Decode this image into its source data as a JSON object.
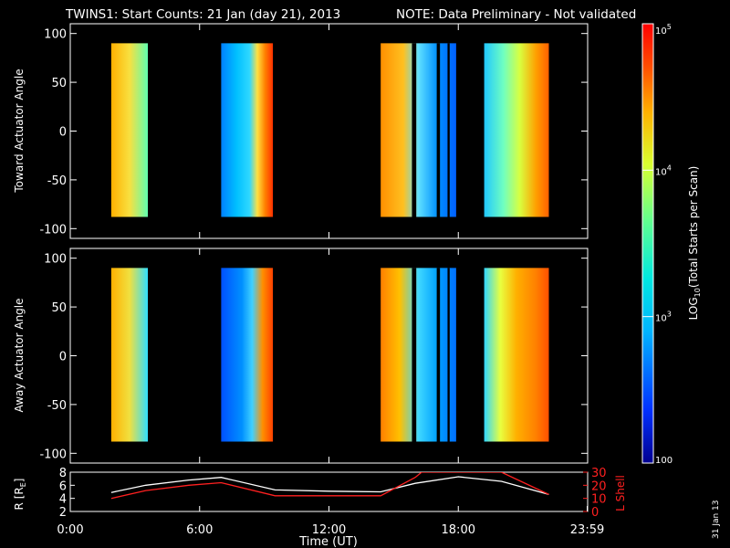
{
  "title": {
    "main": "TWINS1: Start Counts: 21 Jan (day  21), 2013",
    "note": "NOTE: Data Preliminary - Not validated",
    "note_color": "#ff2020"
  },
  "footer_date": "31 Jan 13",
  "colorbar": {
    "label": "LOG",
    "label_sub": "10",
    "label_rest": "(Total Starts per Scan)",
    "scale": "log",
    "range": [
      100,
      100000
    ],
    "ticks": [
      {
        "base": "10",
        "exp": "5",
        "value": 100000
      },
      {
        "base": "10",
        "exp": "4",
        "value": 10000
      },
      {
        "base": "10",
        "exp": "3",
        "value": 1000
      },
      {
        "base": "100",
        "exp": "",
        "value": 100
      }
    ]
  },
  "chart_data": [
    {
      "type": "heatmap",
      "ylabel": "Toward Actuator Angle",
      "xlim": [
        0,
        24
      ],
      "ylim": [
        -110,
        110
      ],
      "yticks": [
        100,
        50,
        0,
        -50,
        -100
      ],
      "ytick_labels": [
        "100",
        "50",
        "0",
        "-50",
        "-100"
      ],
      "data_blocks_hours": [
        [
          1.9,
          3.6
        ],
        [
          7.0,
          9.4
        ],
        [
          14.4,
          17.9
        ],
        [
          19.2,
          22.2
        ]
      ],
      "angle_range": [
        -88,
        90
      ]
    },
    {
      "type": "heatmap",
      "ylabel": "Away Actuator Angle",
      "xlim": [
        0,
        24
      ],
      "ylim": [
        -110,
        110
      ],
      "yticks": [
        100,
        50,
        0,
        -50,
        -100
      ],
      "ytick_labels": [
        "100",
        "50",
        "0",
        "-50",
        "-100"
      ],
      "data_blocks_hours": [
        [
          1.9,
          3.6
        ],
        [
          7.0,
          9.4
        ],
        [
          14.4,
          17.9
        ],
        [
          19.2,
          22.2
        ]
      ],
      "angle_range": [
        -88,
        90
      ]
    },
    {
      "type": "line",
      "ylabel": "R [R",
      "ylabel_sub": "E",
      "ylabel_close": "]",
      "ylim": [
        2,
        8
      ],
      "yticks": [
        "8",
        "6",
        "4",
        "2"
      ],
      "y2label": "L Shell",
      "y2lim": [
        0,
        30
      ],
      "y2ticks": [
        "30",
        "20",
        "10",
        "0"
      ],
      "xlabel": "Time (UT)",
      "xticks": [
        "0:00",
        "6:00",
        "12:00",
        "18:00",
        "23:59"
      ],
      "xtick_hours": [
        0,
        6,
        12,
        18,
        23.98
      ],
      "series": [
        {
          "color": "#ffffff",
          "axis": "left",
          "x": [
            1.9,
            3.5,
            5.5,
            7.0,
            9.5,
            12.0,
            14.4,
            16.0,
            18.0,
            20.0,
            22.2
          ],
          "y": [
            4.9,
            6.0,
            6.8,
            7.2,
            5.3,
            5.1,
            5.0,
            6.3,
            7.3,
            6.6,
            4.6
          ]
        },
        {
          "color": "#ff2020",
          "axis": "right",
          "x": [
            1.9,
            3.5,
            5.5,
            7.0,
            9.5,
            12.0,
            14.4,
            16.0,
            16.3,
            20.0,
            22.2
          ],
          "y": [
            10,
            16,
            20,
            22,
            12,
            12,
            12,
            26,
            30,
            30,
            13
          ]
        }
      ]
    }
  ]
}
